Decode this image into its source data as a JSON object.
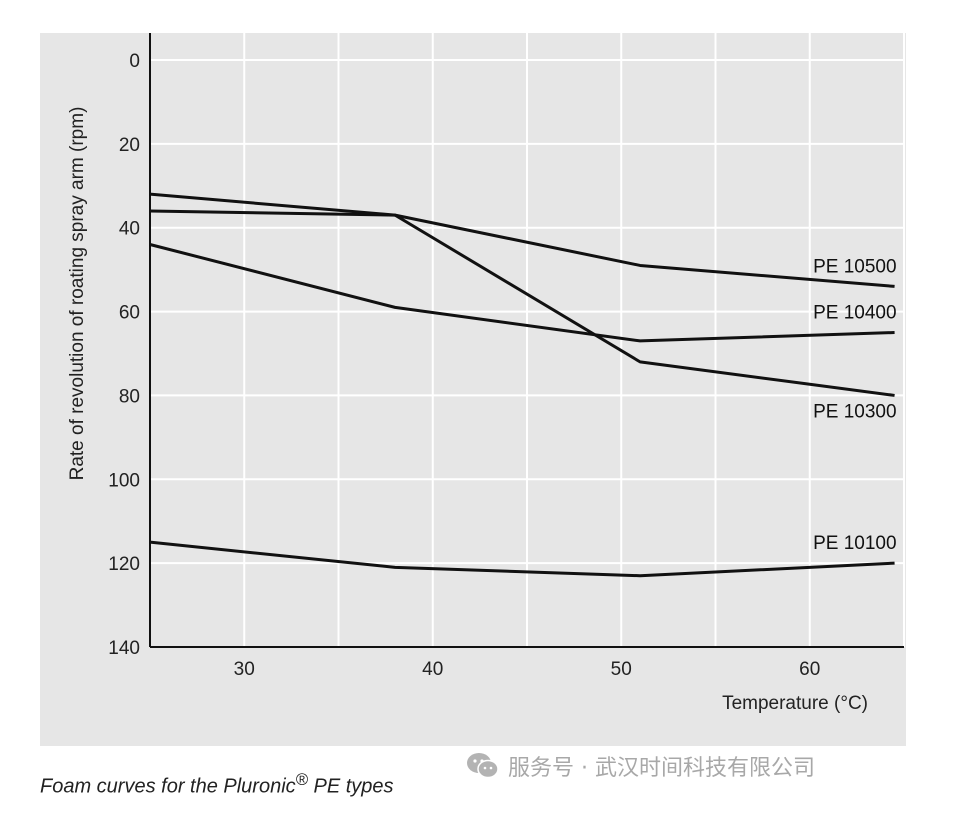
{
  "chart_data": {
    "type": "line",
    "title": "",
    "xlabel": "Temperature (°C)",
    "ylabel": "Rate of revolution of roating spray arm (rpm)",
    "xlim": [
      25,
      65
    ],
    "ylim": [
      0,
      140
    ],
    "y_inverted": true,
    "x_ticks": [
      30,
      40,
      50,
      60
    ],
    "y_ticks": [
      0,
      20,
      40,
      60,
      80,
      100,
      120,
      140
    ],
    "grid": true,
    "series": [
      {
        "name": "PE 10500",
        "x": [
          25,
          38,
          51,
          64.5
        ],
        "y": [
          36,
          37,
          49,
          54
        ]
      },
      {
        "name": "PE 10400",
        "x": [
          25,
          38,
          51,
          64.5
        ],
        "y": [
          44,
          59,
          67,
          65
        ]
      },
      {
        "name": "PE 10300",
        "x": [
          25,
          38,
          51,
          64.5
        ],
        "y": [
          32,
          37,
          72,
          80
        ]
      },
      {
        "name": "PE 10100",
        "x": [
          25,
          38,
          51,
          64.5
        ],
        "y": [
          115,
          121,
          123,
          120
        ]
      }
    ],
    "colors": {
      "line": "#111111",
      "background": "#e6e6e6",
      "grid": "#ffffff"
    }
  },
  "caption": {
    "prefix": "Foam curves for the Pluronic",
    "mark": "®",
    "suffix": " PE types"
  },
  "watermark": {
    "text": "服务号 · 武汉时间科技有限公司",
    "icon": "wechat-icon"
  }
}
